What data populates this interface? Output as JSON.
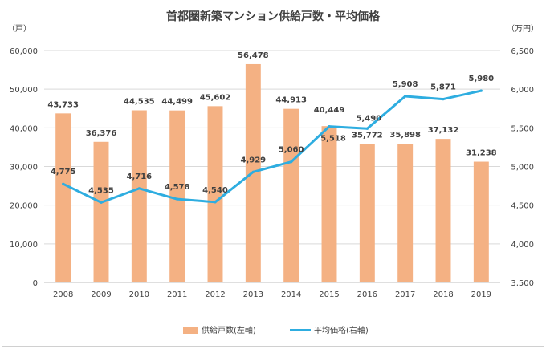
{
  "chart_data": {
    "type": "bar+line",
    "title": "首都圏新築マンション供給戸数・平均価格",
    "y_left_unit": "（戸）",
    "y_right_unit": "（万円）",
    "categories": [
      "2008",
      "2009",
      "2010",
      "2011",
      "2012",
      "2013",
      "2014",
      "2015",
      "2016",
      "2017",
      "2018",
      "2019"
    ],
    "y_left_ticks": [
      "0",
      "10,000",
      "20,000",
      "30,000",
      "40,000",
      "50,000",
      "60,000"
    ],
    "y_right_ticks": [
      "3,500",
      "4,000",
      "4,500",
      "5,000",
      "5,500",
      "6,000",
      "6,500"
    ],
    "ylim_left": [
      0,
      60000
    ],
    "ylim_right": [
      3500,
      6500
    ],
    "grid": true,
    "legend_position": "bottom",
    "series": [
      {
        "name": "供給戸数(左軸)",
        "type": "bar",
        "axis": "left",
        "color": "#F4B183",
        "values": [
          43733,
          36376,
          44535,
          44499,
          45602,
          56478,
          44913,
          40449,
          35772,
          35898,
          37132,
          31238
        ],
        "labels": [
          "43,733",
          "36,376",
          "44,535",
          "44,499",
          "45,602",
          "56,478",
          "44,913",
          "40,449",
          "35,772",
          "35,898",
          "37,132",
          "31,238"
        ]
      },
      {
        "name": "平均価格(右軸)",
        "type": "line",
        "axis": "right",
        "color": "#2EADE0",
        "values": [
          4775,
          4535,
          4716,
          4578,
          4540,
          4929,
          5060,
          5518,
          5490,
          5908,
          5871,
          5980
        ],
        "labels": [
          "4,775",
          "4,535",
          "4,716",
          "4,578",
          "4,540",
          "4,929",
          "5,060",
          "5,518",
          "5,490",
          "5,908",
          "5,871",
          "5,980"
        ]
      }
    ]
  }
}
